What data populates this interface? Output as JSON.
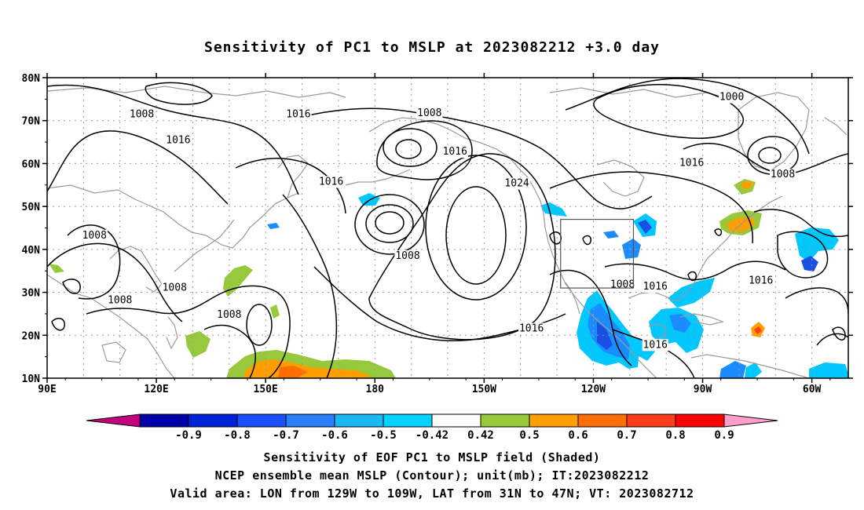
{
  "title": "Sensitivity of PC1 to MSLP at 2023082212 +3.0 day",
  "map": {
    "lon_range": [
      90,
      310
    ],
    "lat_range": [
      10,
      80
    ],
    "lat_ticks": [
      {
        "value": 80,
        "label": "80N"
      },
      {
        "value": 70,
        "label": "70N"
      },
      {
        "value": 60,
        "label": "60N"
      },
      {
        "value": 50,
        "label": "50N"
      },
      {
        "value": 40,
        "label": "40N"
      },
      {
        "value": 30,
        "label": "30N"
      },
      {
        "value": 20,
        "label": "20N"
      },
      {
        "value": 10,
        "label": "10N"
      }
    ],
    "lon_ticks": [
      {
        "value": 90,
        "label": "90E"
      },
      {
        "value": 120,
        "label": "120E"
      },
      {
        "value": 150,
        "label": "150E"
      },
      {
        "value": 180,
        "label": "180"
      },
      {
        "value": 210,
        "label": "150W"
      },
      {
        "value": 240,
        "label": "120W"
      },
      {
        "value": 270,
        "label": "90W"
      },
      {
        "value": 300,
        "label": "60W"
      }
    ],
    "valid_box": {
      "lon_min": 231,
      "lon_max": 251,
      "lat_min": 31,
      "lat_max": 47
    },
    "contour_labels": [
      {
        "text": "1008",
        "lon": 116,
        "lat": 71.5
      },
      {
        "text": "1016",
        "lon": 159,
        "lat": 71.5
      },
      {
        "text": "1008",
        "lon": 195,
        "lat": 71.8
      },
      {
        "text": "1000",
        "lon": 278,
        "lat": 75.5
      },
      {
        "text": "1016",
        "lon": 126,
        "lat": 65.5
      },
      {
        "text": "1016",
        "lon": 202,
        "lat": 62.8
      },
      {
        "text": "1016",
        "lon": 267,
        "lat": 60.2
      },
      {
        "text": "1008",
        "lon": 292,
        "lat": 57.5
      },
      {
        "text": "1016",
        "lon": 168,
        "lat": 55.8
      },
      {
        "text": "1024",
        "lon": 219,
        "lat": 55.4
      },
      {
        "text": "1008",
        "lon": 103,
        "lat": 43.3
      },
      {
        "text": "1008",
        "lon": 189,
        "lat": 38.5
      },
      {
        "text": "1008",
        "lon": 248,
        "lat": 31.8
      },
      {
        "text": "1016",
        "lon": 257,
        "lat": 31.4
      },
      {
        "text": "1016",
        "lon": 286,
        "lat": 32.8
      },
      {
        "text": "1008",
        "lon": 125,
        "lat": 31.1
      },
      {
        "text": "1008",
        "lon": 110,
        "lat": 28.2
      },
      {
        "text": "1008",
        "lon": 140,
        "lat": 24.8
      },
      {
        "text": "1016",
        "lon": 223,
        "lat": 21.6
      },
      {
        "text": "1016",
        "lon": 257,
        "lat": 17.8
      }
    ]
  },
  "colorbar": {
    "colors": [
      "#c4007f",
      "#0000a8",
      "#0022d6",
      "#1a4fff",
      "#2a7fff",
      "#1ab8f5",
      "#00d3ff",
      "#ffffff",
      "#96c93c",
      "#ff9e00",
      "#ff6e00",
      "#ff3c1a",
      "#ff0000",
      "#ff9fc8"
    ],
    "labels": [
      "-0.9",
      "-0.8",
      "-0.7",
      "-0.6",
      "-0.5",
      "-0.42",
      "0.42",
      "0.5",
      "0.6",
      "0.7",
      "0.8",
      "0.9"
    ]
  },
  "shading_colors": {
    "neg_light": "#00c8ff",
    "neg_mid": "#1a8cff",
    "neg_dark": "#1a4fe6",
    "pos_green": "#96c93c",
    "pos_orange": "#ff9e00",
    "pos_dkorange": "#ff6e00",
    "pos_red": "#ff3c1a"
  },
  "captions": {
    "line1": "Sensitivity of EOF PC1 to MSLP field (Shaded)",
    "line2": "NCEP ensemble mean MSLP (Contour); unit(mb); IT:2023082212",
    "line3": "Valid area: LON from 129W to 109W, LAT from 31N to 47N; VT: 2023082712"
  }
}
